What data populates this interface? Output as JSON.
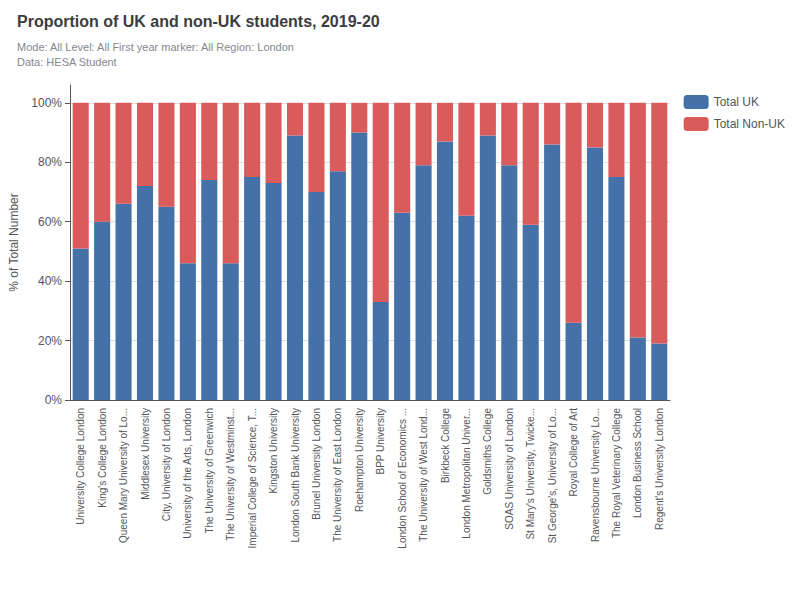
{
  "chart_data": {
    "type": "bar",
    "title": "Proportion of UK and non-UK students, 2019-20",
    "subtitle": [
      "Mode: All Level: All First year marker: All Region: London",
      "Data: HESA Student"
    ],
    "ylabel": "% of Total Number",
    "categories": [
      "University College London",
      "King's College London",
      "Queen Mary University of Lo...",
      "Middlesex University",
      "City, University of London",
      "University of the Arts, London",
      "The University of Greenwich",
      "The University of Westminst...",
      "Imperial College of Science, T...",
      "Kingston University",
      "London South Bank University",
      "Brunel University London",
      "The University of East London",
      "Roehampton University",
      "BPP University",
      "London School of Economics ...",
      "The University of West Lond...",
      "Birkbeck College",
      "London Metropolitan Univer...",
      "Goldsmiths College",
      "SOAS University of London",
      "St Mary's University, Twicke...",
      "St George's, University of Lo...",
      "Royal College of Art",
      "Ravensbourne University Lo...",
      "The Royal Veterinary College",
      "London Business School",
      "Regent's University London"
    ],
    "series": [
      {
        "name": "Total UK",
        "color": "#4472a8",
        "values": [
          51,
          60,
          66,
          72,
          65,
          46,
          74,
          46,
          75,
          73,
          89,
          70,
          77,
          90,
          33,
          63,
          79,
          87,
          62,
          89,
          79,
          59,
          86,
          26,
          85,
          75,
          21,
          19
        ]
      },
      {
        "name": "Total Non-UK",
        "color": "#d95b5b",
        "values": [
          49,
          40,
          34,
          28,
          35,
          54,
          26,
          54,
          25,
          27,
          11,
          30,
          23,
          10,
          67,
          37,
          21,
          13,
          38,
          11,
          21,
          41,
          14,
          74,
          15,
          25,
          79,
          81
        ]
      }
    ],
    "stacked": true,
    "ylim": [
      0,
      106
    ],
    "yticks": [
      {
        "value": 0,
        "label": "0%"
      },
      {
        "value": 20,
        "label": "20%"
      },
      {
        "value": 40,
        "label": "40%"
      },
      {
        "value": 60,
        "label": "60%"
      },
      {
        "value": 80,
        "label": "80%"
      },
      {
        "value": 100,
        "label": "100%"
      }
    ],
    "grid": true,
    "legend": "right"
  }
}
